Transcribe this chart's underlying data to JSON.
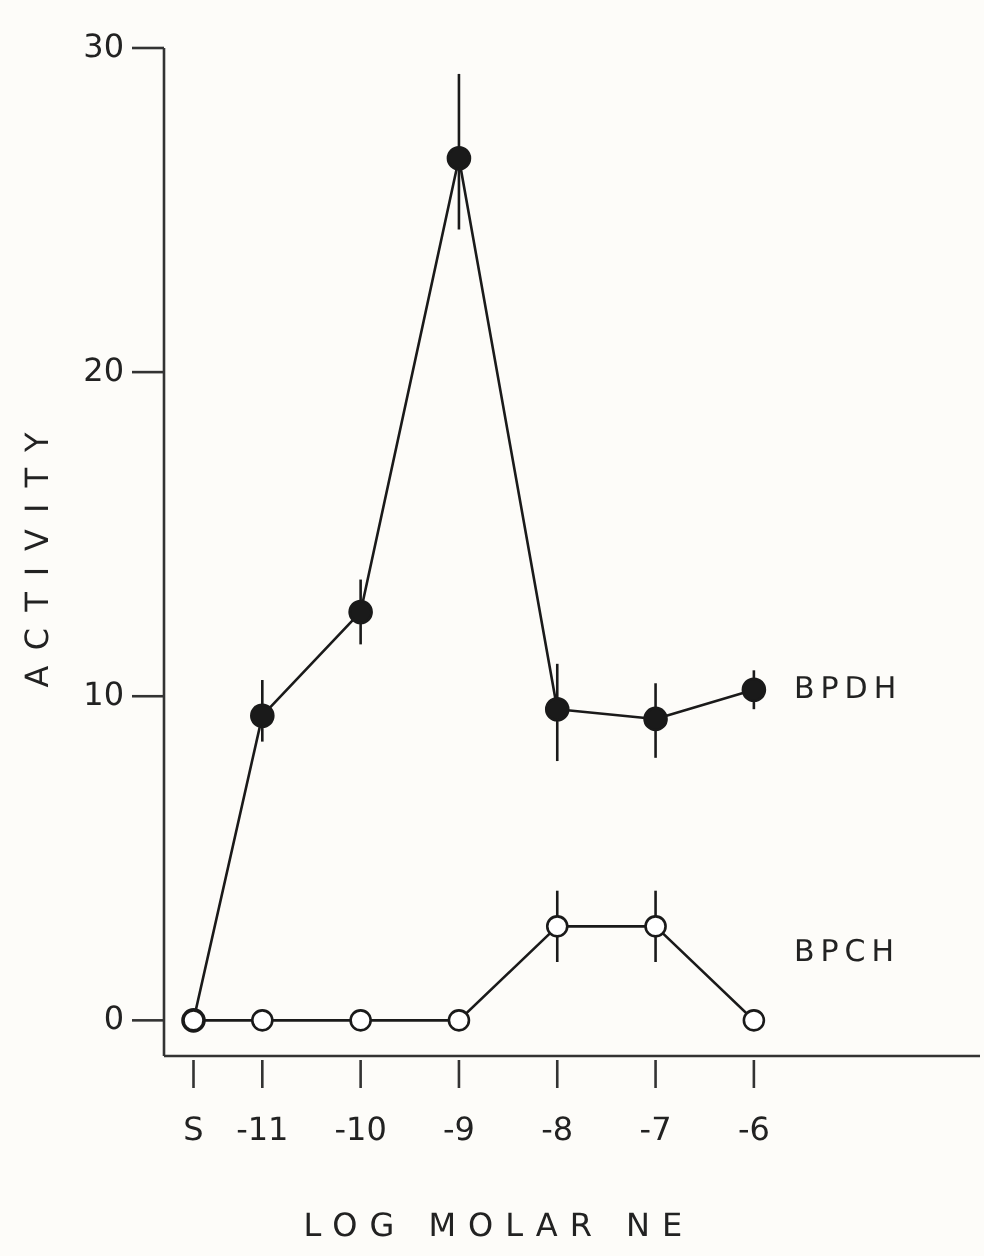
{
  "chart_data": {
    "type": "line",
    "xlabel": "LOG MOLAR NE",
    "ylabel": "ACTIVITY",
    "x": [
      -11.7,
      -11,
      -10,
      -9,
      -8,
      -7,
      -6
    ],
    "xlim": [
      -12,
      -3.7
    ],
    "xticks": [
      {
        "value": -11.7,
        "label": "S"
      },
      {
        "value": -11,
        "label": "-11"
      },
      {
        "value": -10,
        "label": "-10"
      },
      {
        "value": -9,
        "label": "-9"
      },
      {
        "value": -8,
        "label": "-8"
      },
      {
        "value": -7,
        "label": "-7"
      },
      {
        "value": -6,
        "label": "-6"
      }
    ],
    "ylim": [
      -1.1,
      30
    ],
    "yticks": [
      0,
      10,
      20,
      30
    ],
    "marker": "circle",
    "legend": false,
    "grid": false,
    "series": [
      {
        "name": "BPDH",
        "color": "#1a1a1a",
        "values": [
          0,
          9.4,
          12.6,
          26.6,
          9.6,
          9.3,
          10.2
        ],
        "errors": [
          null,
          [
            8.6,
            10.5
          ],
          [
            11.6,
            13.6
          ],
          [
            24.4,
            29.2
          ],
          [
            8.0,
            11.0
          ],
          [
            8.1,
            10.4
          ],
          [
            9.6,
            10.8
          ]
        ]
      },
      {
        "name": "BPCH",
        "color": "#1a1a1a",
        "values": [
          0,
          0,
          0,
          0,
          2.9,
          2.9,
          0
        ],
        "errors": [
          null,
          null,
          null,
          null,
          [
            1.8,
            4.0
          ],
          [
            1.8,
            4.0
          ],
          null
        ]
      }
    ]
  }
}
